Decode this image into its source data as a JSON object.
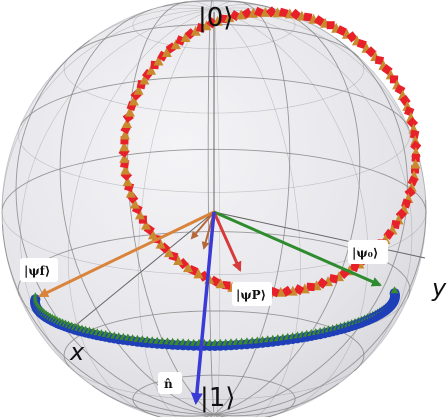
{
  "labels": {
    "ket_zero": "|0⟩",
    "ket_one": "|1⟩",
    "axis_x": "x",
    "axis_y": "y",
    "psi_0": "|ψ₀⟩",
    "psi_f": "|ψf⟩",
    "psi_p": "|ψP⟩",
    "n_hat": "n̂"
  },
  "colors": {
    "sphere_fill": "#ebebf0",
    "wireframe": "#8a8a8a",
    "trajectory_square": "#e8202a",
    "trajectory_triangle": "#c98a2e",
    "equator_marker_green": "#3a8a2a",
    "equator_marker_blue": "#1f3fb8",
    "vector_psi_0": "#2e8b2e",
    "vector_psi_f": "#d9843a",
    "vector_psi_p": "#d63a3a",
    "vector_n_hat": "#3a3ad6",
    "small_arrow": "#b5693a"
  }
}
